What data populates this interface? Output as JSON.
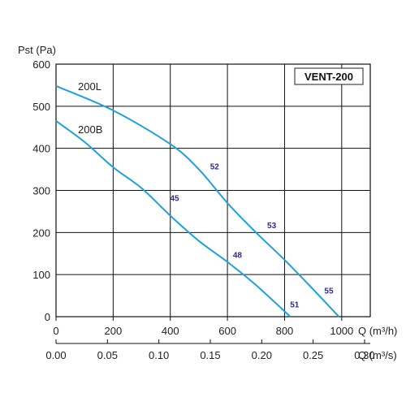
{
  "chart_data": {
    "type": "line",
    "model": "VENT-200",
    "ylabel": "Pst (Pa)",
    "xlabel": "Q (m³/h)",
    "x2label": "Q (m³/s)",
    "xlim": [
      0,
      1100
    ],
    "ylim": [
      0,
      600
    ],
    "grid": true,
    "x_ticks": [
      "0",
      "200",
      "400",
      "600",
      "800",
      "1000"
    ],
    "x2_ticks": [
      "0.00",
      "0.05",
      "0.10",
      "0.15",
      "0.20",
      "0.25",
      "0.30"
    ],
    "y_ticks": [
      "0",
      "100",
      "200",
      "300",
      "400",
      "500",
      "600"
    ],
    "series": [
      {
        "name": "200L",
        "color": "#1ea0d8",
        "x": [
          0,
          200,
          400,
          500,
          600,
          700,
          800,
          900,
          990
        ],
        "y": [
          548,
          490,
          410,
          350,
          270,
          200,
          135,
          65,
          0
        ]
      },
      {
        "name": "200B",
        "color": "#1ea0d8",
        "x": [
          0,
          100,
          200,
          300,
          400,
          500,
          600,
          700,
          820
        ],
        "y": [
          465,
          415,
          355,
          305,
          240,
          180,
          130,
          75,
          0
        ]
      }
    ],
    "point_labels": [
      {
        "text": "52",
        "x": 555,
        "y": 350
      },
      {
        "text": "53",
        "x": 755,
        "y": 210
      },
      {
        "text": "55",
        "x": 955,
        "y": 55
      },
      {
        "text": "45",
        "x": 415,
        "y": 275
      },
      {
        "text": "48",
        "x": 635,
        "y": 140
      },
      {
        "text": "51",
        "x": 835,
        "y": 22
      }
    ]
  }
}
